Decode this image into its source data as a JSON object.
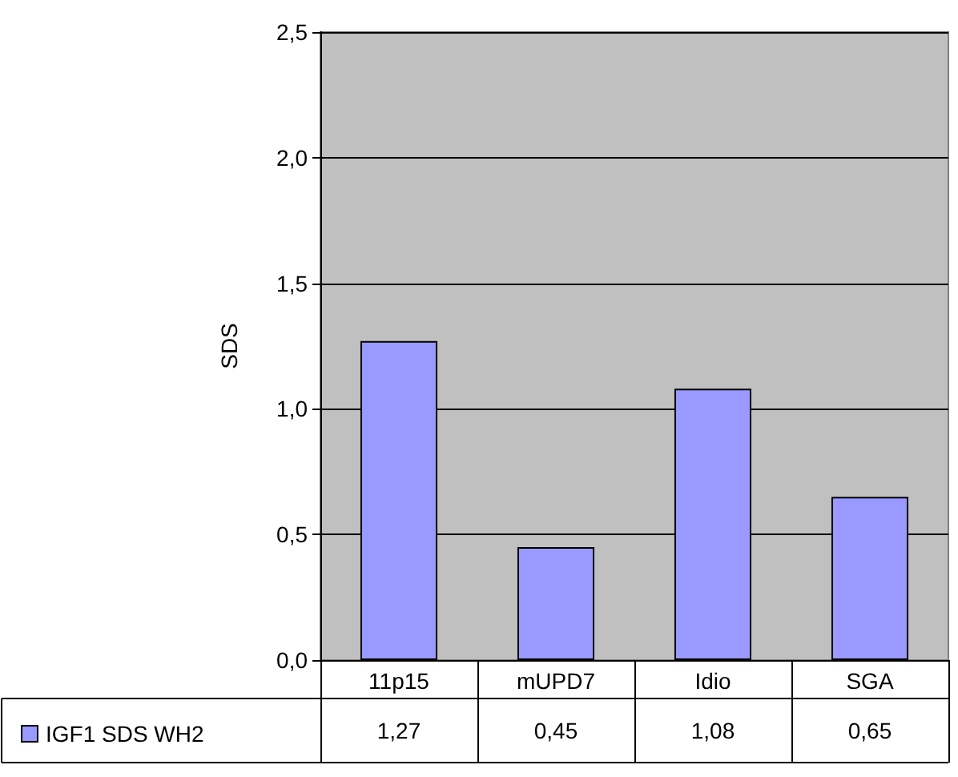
{
  "chart_data": {
    "type": "bar",
    "ylabel": "SDS",
    "categories": [
      "11p15",
      "mUPD7",
      "Idio",
      "SGA"
    ],
    "series": [
      {
        "name": "IGF1 SDS WH2",
        "color": "#9999ff",
        "values": [
          1.27,
          0.45,
          1.08,
          0.65
        ],
        "value_labels": [
          "1,27",
          "0,45",
          "1,08",
          "0,65"
        ]
      }
    ],
    "ylim": [
      0,
      2.5
    ],
    "yticks": [
      {
        "value": 0,
        "label": "0,0"
      },
      {
        "value": 0.5,
        "label": "0,5"
      },
      {
        "value": 1,
        "label": "1,0"
      },
      {
        "value": 1.5,
        "label": "1,5"
      },
      {
        "value": 2,
        "label": "2,0"
      },
      {
        "value": 2.5,
        "label": "2,5"
      }
    ],
    "grid": "y",
    "legend": "bottom"
  }
}
